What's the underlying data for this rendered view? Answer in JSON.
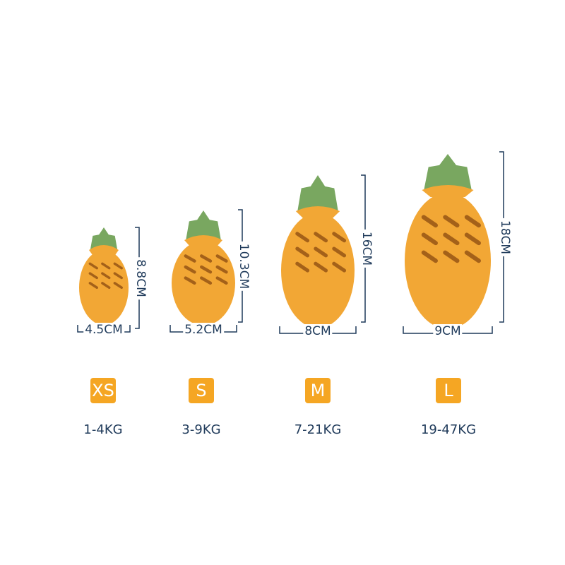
{
  "colors": {
    "body": "#f2a735",
    "shade": "#de8f22",
    "crown": "#79a760",
    "text": "#1f3a5a",
    "badge": "#f5a623"
  },
  "sizes": [
    {
      "size": "XS",
      "width": "4.5CM",
      "height": "8.8CM",
      "weight": "1-4KG"
    },
    {
      "size": "S",
      "width": "5.2CM",
      "height": "10.3CM",
      "weight": "3-9KG"
    },
    {
      "size": "M",
      "width": "8CM",
      "height": "16CM",
      "weight": "7-21KG"
    },
    {
      "size": "L",
      "width": "9CM",
      "height": "18CM",
      "weight": "19-47KG"
    }
  ]
}
